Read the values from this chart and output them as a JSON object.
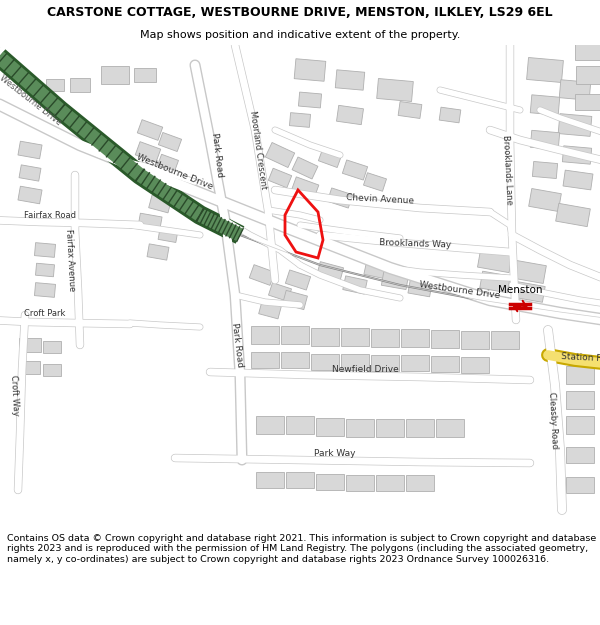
{
  "title_line1": "CARSTONE COTTAGE, WESTBOURNE DRIVE, MENSTON, ILKLEY, LS29 6EL",
  "title_line2": "Map shows position and indicative extent of the property.",
  "footer_text": "Contains OS data © Crown copyright and database right 2021. This information is subject to Crown copyright and database rights 2023 and is reproduced with the permission of HM Land Registry. The polygons (including the associated geometry, namely x, y co-ordinates) are subject to Crown copyright and database rights 2023 Ordnance Survey 100026316.",
  "map_bg": "#f0ece8",
  "road_color": "#ffffff",
  "road_outline": "#c8c8c8",
  "building_color": "#d8d8d8",
  "building_outline": "#b0b0b0",
  "rail_green": "#5a8a5a",
  "rail_dark": "#2a5a2a",
  "highlight_color": "#ee1111",
  "station_color": "#cc0000",
  "yellow_road": "#f5e070",
  "yellow_outline": "#c8a800",
  "title_bg": "#ffffff",
  "footer_bg": "#ffffff",
  "fig_width": 6.0,
  "fig_height": 6.25
}
